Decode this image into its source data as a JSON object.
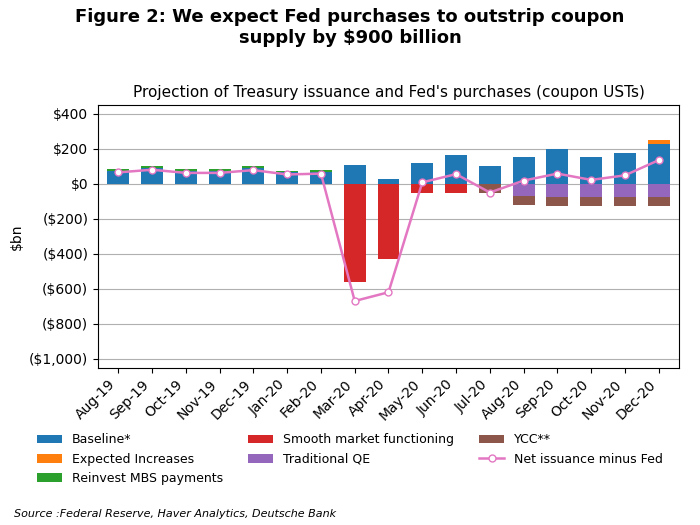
{
  "chart_data": {
    "type": "bar",
    "stacked": true,
    "title": "Figure 2: We expect Fed purchases to outstrip coupon\nsupply by $900 billion",
    "subtitle": "Projection of Treasury issuance and Fed's purchases (coupon USTs)",
    "ylabel": "$bn",
    "annotations": [
      "Source :Federal Reserve, Haver Analytics, Deutsche Bank"
    ],
    "categories": [
      "Aug-19",
      "Sep-19",
      "Oct-19",
      "Nov-19",
      "Dec-19",
      "Jan-20",
      "Feb-20",
      "Mar-20",
      "Apr-20",
      "May-20",
      "Jun-20",
      "Jul-20",
      "Aug-20",
      "Sep-20",
      "Oct-20",
      "Nov-20",
      "Dec-20"
    ],
    "series": [
      {
        "name": "Baseline*",
        "type": "bar",
        "values": [
          75,
          90,
          75,
          75,
          90,
          65,
          70,
          110,
          25,
          120,
          165,
          100,
          155,
          200,
          155,
          175,
          230
        ]
      },
      {
        "name": "Expected Increases",
        "type": "bar",
        "values": [
          0,
          0,
          0,
          0,
          0,
          0,
          0,
          0,
          0,
          0,
          0,
          0,
          0,
          0,
          0,
          0,
          20
        ]
      },
      {
        "name": "Reinvest MBS payments",
        "type": "bar",
        "values": [
          10,
          10,
          10,
          10,
          10,
          10,
          10,
          0,
          0,
          0,
          0,
          0,
          0,
          0,
          0,
          0,
          0
        ]
      },
      {
        "name": "Smooth market functioning",
        "type": "bar",
        "values": [
          0,
          0,
          0,
          0,
          0,
          0,
          0,
          -560,
          -430,
          -50,
          -55,
          0,
          0,
          0,
          0,
          0,
          0
        ]
      },
      {
        "name": "Traditional QE",
        "type": "bar",
        "values": [
          0,
          0,
          0,
          0,
          0,
          0,
          0,
          0,
          0,
          0,
          0,
          0,
          -70,
          -75,
          -75,
          -75,
          -75
        ]
      },
      {
        "name": "YCC**",
        "type": "bar",
        "values": [
          0,
          0,
          0,
          0,
          0,
          0,
          0,
          0,
          0,
          0,
          0,
          -55,
          -50,
          -50,
          -50,
          -50,
          -50
        ]
      },
      {
        "name": "Net issuance minus Fed",
        "type": "line",
        "marker": "o",
        "values": [
          65,
          80,
          62,
          62,
          78,
          53,
          58,
          -670,
          -620,
          8,
          55,
          -50,
          18,
          58,
          22,
          48,
          135
        ]
      }
    ],
    "ylim": [
      -1050,
      450
    ],
    "yticks": [
      {
        "value": 400,
        "label": "$400"
      },
      {
        "value": 200,
        "label": "$200"
      },
      {
        "value": 0,
        "label": "$0"
      },
      {
        "value": -200,
        "label": "($200)"
      },
      {
        "value": -400,
        "label": "($400)"
      },
      {
        "value": -600,
        "label": "($600)"
      },
      {
        "value": -800,
        "label": "($800)"
      },
      {
        "value": -1000,
        "label": "($1,000)"
      }
    ],
    "grid": true,
    "legend": "lower center"
  }
}
